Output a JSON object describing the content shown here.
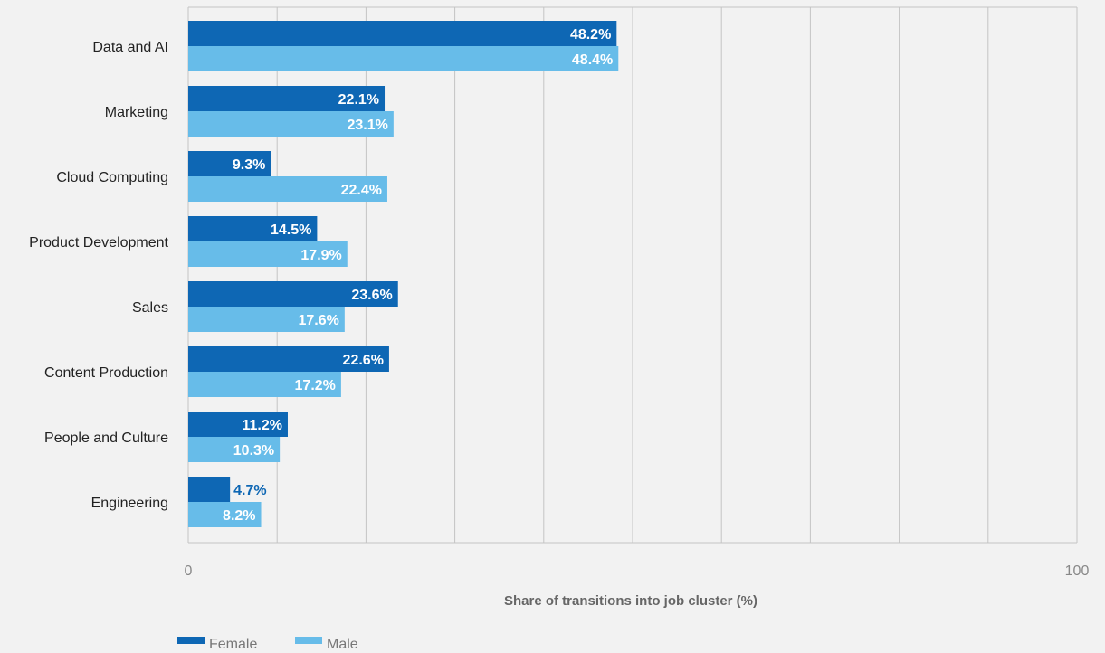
{
  "chart_data": {
    "type": "bar",
    "orientation": "horizontal",
    "categories": [
      "Data and AI",
      "Marketing",
      "Cloud Computing",
      "Product Development",
      "Sales",
      "Content Production",
      "People and Culture",
      "Engineering"
    ],
    "series": [
      {
        "name": "Female",
        "values": [
          48.2,
          22.1,
          9.3,
          14.5,
          23.6,
          22.6,
          11.2,
          4.7
        ],
        "color": "#0e67b4"
      },
      {
        "name": "Male",
        "values": [
          48.4,
          23.1,
          22.4,
          17.9,
          17.6,
          17.2,
          10.3,
          8.2
        ],
        "color": "#67bce9"
      }
    ],
    "data_labels": {
      "Female": [
        "48.2%",
        "22.1%",
        "9.3%",
        "14.5%",
        "23.6%",
        "22.6%",
        "11.2%",
        "4.7%"
      ],
      "Male": [
        "48.4%",
        "23.1%",
        "22.4%",
        "17.9%",
        "17.6%",
        "17.2%",
        "10.3%",
        "8.2%"
      ]
    },
    "xlabel": "Share of transitions into job cluster (%)",
    "ylabel": "",
    "title": "",
    "xlim": [
      0,
      100
    ],
    "x_ticks": [
      0,
      100
    ],
    "x_tick_labels": [
      "0",
      "100"
    ],
    "grid": true,
    "grid_step": 10,
    "legend": "bottom-left",
    "colors": {
      "grid": "#c4c4c4",
      "label_on_bar": "#ffffff",
      "label_outside": "#0e67b4"
    }
  }
}
